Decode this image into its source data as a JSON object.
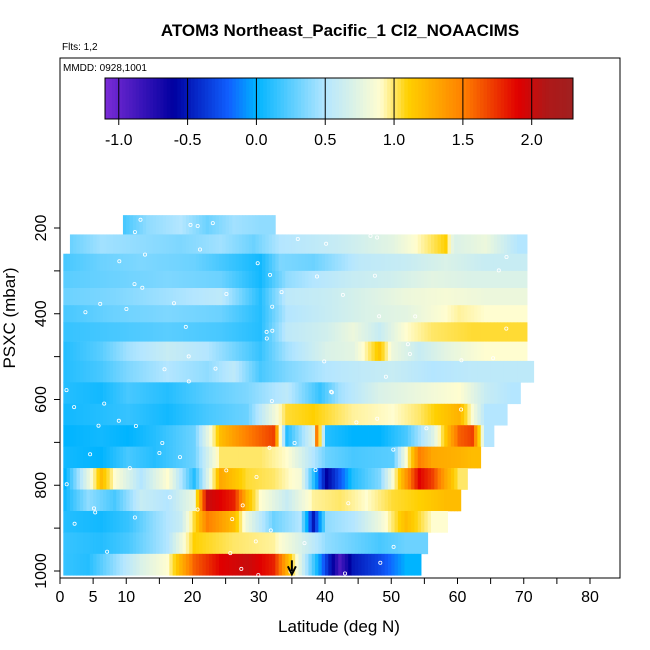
{
  "chart_data": {
    "type": "heatmap",
    "title": "ATOM3 Northeast_Pacific_1 Cl2_NOAACIMS",
    "subtitle_flights": "Flts: 1,2",
    "subtitle_dates": "MMDD: 0928,1001",
    "xlabel": "Latitude (deg N)",
    "ylabel": "PSXC (mbar)",
    "xlim": [
      0,
      85
    ],
    "ylim": [
      1010,
      170
    ],
    "y_reversed": true,
    "x_ticks": [
      0,
      5,
      10,
      20,
      30,
      40,
      50,
      60,
      70,
      80
    ],
    "x_tick_labels": [
      "0",
      "5",
      "10",
      "20",
      "30",
      "40",
      "50",
      "60",
      "70",
      "80"
    ],
    "y_ticks": [
      200,
      400,
      600,
      800,
      1000
    ],
    "y_tick_labels": [
      "200",
      "400",
      "600",
      "800",
      "1000"
    ],
    "colorbar": {
      "min": -1.1,
      "max": 2.3,
      "ticks": [
        -1.0,
        -0.5,
        0.0,
        0.5,
        1.0,
        1.5,
        2.0
      ],
      "tick_labels": [
        "-1.0",
        "-0.5",
        "0.0",
        "0.5",
        "1.0",
        "1.5",
        "2.0"
      ],
      "colors": [
        "#7b2bd6",
        "#0000a0",
        "#1060ff",
        "#00b4ff",
        "#b4e6ff",
        "#fffdd0",
        "#ffd000",
        "#ff8000",
        "#e00000",
        "#b01818",
        "#a02020"
      ],
      "stops": [
        -1.1,
        -0.6,
        -0.2,
        0.0,
        0.5,
        0.9,
        1.1,
        1.5,
        1.9,
        2.1,
        2.3
      ]
    },
    "layers": [
      {
        "p_top": 170,
        "p_bot": 215,
        "lat_min": 9.5,
        "lat_max": 32.5,
        "segments": [
          [
            9.5,
            0.2
          ],
          [
            13,
            0.4
          ],
          [
            18,
            0.5
          ],
          [
            22,
            0.3
          ],
          [
            26,
            0.45
          ],
          [
            30,
            0.4
          ]
        ]
      },
      {
        "p_top": 215,
        "p_bot": 260,
        "lat_min": 1.5,
        "lat_max": 70.5,
        "segments": [
          [
            1.5,
            0.3
          ],
          [
            6,
            0.45
          ],
          [
            12,
            0.4
          ],
          [
            18,
            0.35
          ],
          [
            24,
            0.45
          ],
          [
            29,
            0.3
          ],
          [
            33,
            0.5
          ],
          [
            42,
            0.6
          ],
          [
            50,
            0.75
          ],
          [
            58,
            1.1
          ],
          [
            59.2,
            0.7
          ],
          [
            64,
            0.8
          ],
          [
            69,
            0.5
          ]
        ]
      },
      {
        "p_top": 260,
        "p_bot": 300,
        "lat_min": 0.5,
        "lat_max": 70.5,
        "segments": [
          [
            0.5,
            0.2
          ],
          [
            6,
            0.3
          ],
          [
            12,
            0.35
          ],
          [
            20,
            0.3
          ],
          [
            30,
            0.05
          ],
          [
            33,
            0.35
          ],
          [
            38,
            0.3
          ],
          [
            45,
            0.55
          ],
          [
            52,
            0.6
          ],
          [
            58,
            0.7
          ],
          [
            64,
            0.6
          ]
        ]
      },
      {
        "p_top": 300,
        "p_bot": 340,
        "lat_min": 0.5,
        "lat_max": 70.5,
        "segments": [
          [
            0.5,
            0.25
          ],
          [
            8,
            0.3
          ],
          [
            16,
            0.35
          ],
          [
            24,
            0.3
          ],
          [
            30,
            0.05
          ],
          [
            34,
            0.4
          ],
          [
            38,
            0.5
          ],
          [
            44,
            0.6
          ],
          [
            50,
            0.65
          ],
          [
            56,
            0.75
          ],
          [
            62,
            0.7
          ]
        ]
      },
      {
        "p_top": 340,
        "p_bot": 380,
        "lat_min": 0.5,
        "lat_max": 70.5,
        "segments": [
          [
            0.5,
            0.3
          ],
          [
            8,
            0.35
          ],
          [
            16,
            0.45
          ],
          [
            24,
            0.55
          ],
          [
            30,
            0.1
          ],
          [
            34,
            0.55
          ],
          [
            40,
            0.6
          ],
          [
            46,
            0.7
          ],
          [
            52,
            0.8
          ],
          [
            58,
            0.85
          ],
          [
            64,
            0.8
          ]
        ]
      },
      {
        "p_top": 380,
        "p_bot": 420,
        "lat_min": 0.5,
        "lat_max": 70.5,
        "segments": [
          [
            0.5,
            0.2
          ],
          [
            8,
            0.3
          ],
          [
            16,
            0.35
          ],
          [
            24,
            0.3
          ],
          [
            30,
            0.1
          ],
          [
            34,
            0.5
          ],
          [
            40,
            0.6
          ],
          [
            46,
            0.7
          ],
          [
            52,
            0.75
          ],
          [
            56,
            0.85
          ],
          [
            60,
            0.95
          ],
          [
            64,
            0.9
          ]
        ]
      },
      {
        "p_top": 420,
        "p_bot": 465,
        "lat_min": 0.5,
        "lat_max": 70.5,
        "segments": [
          [
            0.5,
            0.15
          ],
          [
            8,
            0.2
          ],
          [
            16,
            0.25
          ],
          [
            24,
            0.2
          ],
          [
            30,
            0.1
          ],
          [
            34,
            0.55
          ],
          [
            40,
            0.65
          ],
          [
            44,
            0.8
          ],
          [
            48,
            0.6
          ],
          [
            52,
            0.9
          ],
          [
            56,
            1.0
          ],
          [
            62,
            1.05
          ]
        ]
      },
      {
        "p_top": 465,
        "p_bot": 510,
        "lat_min": 0.5,
        "lat_max": 70.5,
        "segments": [
          [
            0.5,
            0.1
          ],
          [
            6,
            0.25
          ],
          [
            10,
            0.45
          ],
          [
            16,
            0.6
          ],
          [
            22,
            0.5
          ],
          [
            30,
            0.15
          ],
          [
            34,
            0.45
          ],
          [
            40,
            0.7
          ],
          [
            44,
            0.75
          ],
          [
            48,
            1.15
          ],
          [
            50,
            0.8
          ],
          [
            54,
            0.6
          ],
          [
            58,
            0.75
          ],
          [
            64,
            0.9
          ]
        ]
      },
      {
        "p_top": 510,
        "p_bot": 560,
        "lat_min": 0.5,
        "lat_max": 71.5,
        "segments": [
          [
            0.5,
            0.1
          ],
          [
            6,
            0.2
          ],
          [
            10,
            0.35
          ],
          [
            16,
            0.5
          ],
          [
            22,
            0.4
          ],
          [
            26,
            0.55
          ],
          [
            30,
            0.2
          ],
          [
            34,
            0.35
          ],
          [
            40,
            0.5
          ],
          [
            44,
            0.55
          ],
          [
            50,
            0.6
          ],
          [
            56,
            0.5
          ],
          [
            62,
            0.55
          ]
        ]
      },
      {
        "p_top": 560,
        "p_bot": 610,
        "lat_min": 0.5,
        "lat_max": 69.5,
        "segments": [
          [
            0.5,
            0.1
          ],
          [
            6,
            0.05
          ],
          [
            10,
            0.2
          ],
          [
            16,
            0.1
          ],
          [
            22,
            0.25
          ],
          [
            28,
            0.35
          ],
          [
            34,
            0.55
          ],
          [
            39,
            0.15
          ],
          [
            42,
            0.45
          ],
          [
            48,
            0.7
          ],
          [
            54,
            0.8
          ],
          [
            60,
            0.9
          ],
          [
            64,
            0.6
          ],
          [
            68,
            0.5
          ]
        ]
      },
      {
        "p_top": 610,
        "p_bot": 660,
        "lat_min": 0.5,
        "lat_max": 67.5,
        "segments": [
          [
            0.5,
            0.05
          ],
          [
            6,
            0.1
          ],
          [
            10,
            0.15
          ],
          [
            16,
            0.05
          ],
          [
            22,
            0.2
          ],
          [
            28,
            0.3
          ],
          [
            34,
            1.05
          ],
          [
            38,
            1.1
          ],
          [
            44,
            0.95
          ],
          [
            50,
            0.9
          ],
          [
            54,
            1.0
          ],
          [
            60,
            1.25
          ],
          [
            64,
            0.5
          ]
        ]
      },
      {
        "p_top": 660,
        "p_bot": 710,
        "lat_min": 0.5,
        "lat_max": 65.5,
        "segments": [
          [
            0.5,
            0.0
          ],
          [
            6,
            0.05
          ],
          [
            10,
            0.0
          ],
          [
            14,
            0.1
          ],
          [
            20,
            0.3
          ],
          [
            24,
            1.2
          ],
          [
            28,
            1.5
          ],
          [
            32,
            1.7
          ],
          [
            34,
            0.1
          ],
          [
            38,
            0.7
          ],
          [
            38.5,
            1.5
          ],
          [
            40,
            0.1
          ],
          [
            44,
            0.0
          ],
          [
            48,
            0.0
          ],
          [
            52,
            0.2
          ],
          [
            56,
            0.7
          ],
          [
            60,
            1.6
          ],
          [
            62,
            1.7
          ],
          [
            64,
            0.5
          ]
        ]
      },
      {
        "p_top": 710,
        "p_bot": 760,
        "lat_min": 0.5,
        "lat_max": 63.5,
        "segments": [
          [
            0.5,
            0.05
          ],
          [
            6,
            0.0
          ],
          [
            10,
            0.2
          ],
          [
            14,
            0.1
          ],
          [
            20,
            0.3
          ],
          [
            24,
            1.0
          ],
          [
            30,
            1.0
          ],
          [
            34,
            0.9
          ],
          [
            40,
            0.3
          ],
          [
            44,
            0.2
          ],
          [
            50,
            0.25
          ],
          [
            54,
            1.5
          ],
          [
            56,
            1.3
          ],
          [
            60,
            1.25
          ],
          [
            62,
            1.2
          ]
        ]
      },
      {
        "p_top": 760,
        "p_bot": 810,
        "lat_min": 0.5,
        "lat_max": 61.5,
        "segments": [
          [
            0.5,
            0.0
          ],
          [
            6,
            1.2
          ],
          [
            8,
            0.9
          ],
          [
            12,
            0.5
          ],
          [
            16,
            0.9
          ],
          [
            20,
            0.1
          ],
          [
            24,
            1.3
          ],
          [
            28,
            1.05
          ],
          [
            32,
            1.0
          ],
          [
            36,
            0.85
          ],
          [
            40,
            -0.6
          ],
          [
            44,
            0.1
          ],
          [
            48,
            0.35
          ],
          [
            54,
            1.9
          ],
          [
            56,
            1.7
          ],
          [
            58,
            1.3
          ],
          [
            60,
            1.0
          ]
        ]
      },
      {
        "p_top": 810,
        "p_bot": 860,
        "lat_min": 0.5,
        "lat_max": 60.5,
        "segments": [
          [
            0.5,
            0.05
          ],
          [
            4,
            0.4
          ],
          [
            8,
            0.2
          ],
          [
            12,
            0.6
          ],
          [
            16,
            0.5
          ],
          [
            20,
            0.8
          ],
          [
            22,
            2.0
          ],
          [
            26,
            1.8
          ],
          [
            28,
            1.2
          ],
          [
            30,
            0.9
          ],
          [
            34,
            0.6
          ],
          [
            38,
            0.95
          ],
          [
            42,
            1.0
          ],
          [
            46,
            0.9
          ],
          [
            50,
            1.05
          ],
          [
            54,
            1.1
          ],
          [
            58,
            1.2
          ]
        ]
      },
      {
        "p_top": 860,
        "p_bot": 910,
        "lat_min": 0.5,
        "lat_max": 58.5,
        "segments": [
          [
            0.5,
            0.1
          ],
          [
            6,
            0.05
          ],
          [
            10,
            0.15
          ],
          [
            14,
            0.4
          ],
          [
            18,
            0.6
          ],
          [
            22,
            1.5
          ],
          [
            26,
            1.2
          ],
          [
            28,
            0.8
          ],
          [
            32,
            0.3
          ],
          [
            36,
            0.5
          ],
          [
            38,
            -0.5
          ],
          [
            40,
            0.4
          ],
          [
            44,
            0.5
          ],
          [
            48,
            0.8
          ],
          [
            52,
            1.2
          ],
          [
            56,
            0.9
          ]
        ]
      },
      {
        "p_top": 910,
        "p_bot": 960,
        "lat_min": 0.5,
        "lat_max": 55.5,
        "segments": [
          [
            0.5,
            0.15
          ],
          [
            6,
            0.1
          ],
          [
            10,
            0.2
          ],
          [
            16,
            0.5
          ],
          [
            20,
            1.1
          ],
          [
            26,
            1.0
          ],
          [
            32,
            0.95
          ],
          [
            36,
            0.7
          ],
          [
            40,
            0.4
          ],
          [
            44,
            0.3
          ],
          [
            48,
            0.2
          ],
          [
            52,
            0.3
          ]
        ]
      },
      {
        "p_top": 960,
        "p_bot": 1010,
        "lat_min": 0.5,
        "lat_max": 54.5,
        "segments": [
          [
            0.5,
            0.15
          ],
          [
            4,
            0.1
          ],
          [
            8,
            0.4
          ],
          [
            12,
            0.7
          ],
          [
            16,
            0.9
          ],
          [
            20,
            1.6
          ],
          [
            24,
            1.9
          ],
          [
            28,
            2.0
          ],
          [
            32,
            1.8
          ],
          [
            38,
            0.2
          ],
          [
            42,
            -0.9
          ],
          [
            44,
            -0.5
          ],
          [
            48,
            -0.3
          ],
          [
            52,
            0.0
          ]
        ]
      }
    ],
    "marker_arrow": {
      "lat": 35,
      "p_from": 975,
      "p_to": 1010
    }
  }
}
